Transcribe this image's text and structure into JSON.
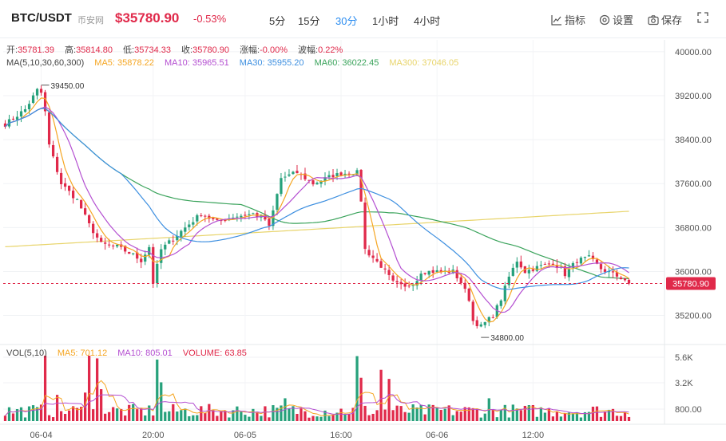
{
  "header": {
    "symbol": "BTC/USDT",
    "exchange": "币安网",
    "price": "$35780.90",
    "change": "-0.53%",
    "periods": [
      "5分",
      "15分",
      "30分",
      "1小时",
      "4小时"
    ],
    "active_period": "30分",
    "tools": {
      "indicators": "指标",
      "settings": "设置",
      "save": "保存"
    }
  },
  "ohlc": {
    "open_label": "开:",
    "open": "35781.39",
    "high_label": "高:",
    "high": "35814.80",
    "low_label": "低:",
    "low": "35734.33",
    "close_label": "收:",
    "close": "35780.90",
    "change_label": "涨幅:",
    "change": "-0.00%",
    "amplitude_label": "波幅:",
    "amplitude": "0.22%"
  },
  "ma_legend": {
    "title": "MA(5,10,30,60,300)",
    "ma5": "MA5: 35878.22",
    "ma10": "MA10: 35965.51",
    "ma30": "MA30: 35955.20",
    "ma60": "MA60: 36022.45",
    "ma300": "MA300: 37046.05"
  },
  "vol_legend": {
    "title": "VOL(5,10)",
    "ma5": "MA5: 701.12",
    "ma10": "MA10: 805.01",
    "volume": "VOLUME: 63.85"
  },
  "colors": {
    "up": "#26a17b",
    "down": "#e0294a",
    "ma5": "#f5a623",
    "ma10": "#b44fd1",
    "ma30": "#3d8fe0",
    "ma60": "#3aa35b",
    "ma300": "#e8d46a",
    "accent": "#2a8cf0"
  },
  "annotations": {
    "max_label": "39450.00",
    "min_label": "34800.00",
    "last_price_tag": "35780.90"
  },
  "chart_data": {
    "type": "candlestick",
    "y_ticks": [
      "40000.00",
      "39200.00",
      "38400.00",
      "37600.00",
      "36800.00",
      "36000.00",
      "35200.00"
    ],
    "ylim": [
      34700,
      40100
    ],
    "vol_ticks": [
      "5.6K",
      "3.2K",
      "800.00"
    ],
    "x_labels": [
      "06-04",
      "20:00",
      "06-05",
      "16:00",
      "06-06",
      "12:00"
    ],
    "x_label_positions": [
      9,
      37,
      60,
      84,
      108,
      132
    ],
    "count": 157,
    "waypoints": [
      [
        0,
        38680
      ],
      [
        5,
        38950
      ],
      [
        8,
        39300
      ],
      [
        9,
        39250
      ],
      [
        10,
        38900
      ],
      [
        11,
        38300
      ],
      [
        14,
        37600
      ],
      [
        18,
        37300
      ],
      [
        21,
        36850
      ],
      [
        24,
        36500
      ],
      [
        28,
        36450
      ],
      [
        32,
        36300
      ],
      [
        34,
        36200
      ],
      [
        36,
        36450
      ],
      [
        37,
        35800
      ],
      [
        39,
        36400
      ],
      [
        42,
        36600
      ],
      [
        45,
        36800
      ],
      [
        49,
        37050
      ],
      [
        53,
        36900
      ],
      [
        57,
        37000
      ],
      [
        62,
        37050
      ],
      [
        65,
        36950
      ],
      [
        66,
        36800
      ],
      [
        67,
        37100
      ],
      [
        69,
        37700
      ],
      [
        73,
        37800
      ],
      [
        77,
        37600
      ],
      [
        82,
        37750
      ],
      [
        86,
        37800
      ],
      [
        88,
        37800
      ],
      [
        89,
        37300
      ],
      [
        90,
        36400
      ],
      [
        94,
        36100
      ],
      [
        97,
        35800
      ],
      [
        100,
        35700
      ],
      [
        103,
        35850
      ],
      [
        104,
        36000
      ],
      [
        107,
        36000
      ],
      [
        112,
        36000
      ],
      [
        114,
        35800
      ],
      [
        116,
        35500
      ],
      [
        117,
        35100
      ],
      [
        119,
        35000
      ],
      [
        122,
        35200
      ],
      [
        124,
        35500
      ],
      [
        126,
        35900
      ],
      [
        128,
        36200
      ],
      [
        130,
        36000
      ],
      [
        134,
        36100
      ],
      [
        137,
        36150
      ],
      [
        139,
        36050
      ],
      [
        140,
        35950
      ],
      [
        143,
        36200
      ],
      [
        146,
        36250
      ],
      [
        149,
        36050
      ],
      [
        152,
        35950
      ],
      [
        155,
        35850
      ],
      [
        156,
        35780.9
      ]
    ],
    "volume_spikes": [
      [
        10,
        5900
      ],
      [
        21,
        5900
      ],
      [
        23,
        5500
      ],
      [
        38,
        5400
      ],
      [
        39,
        3400
      ],
      [
        88,
        5700
      ],
      [
        89,
        3800
      ],
      [
        94,
        4500
      ],
      [
        96,
        3700
      ],
      [
        24,
        2800
      ],
      [
        20,
        2500
      ],
      [
        13,
        2300
      ],
      [
        70,
        2000
      ],
      [
        121,
        2000
      ]
    ],
    "series": [
      {
        "name": "MA5",
        "period": 5
      },
      {
        "name": "MA10",
        "period": 10
      },
      {
        "name": "MA30",
        "period": 30
      },
      {
        "name": "MA60",
        "period": 60
      }
    ]
  }
}
